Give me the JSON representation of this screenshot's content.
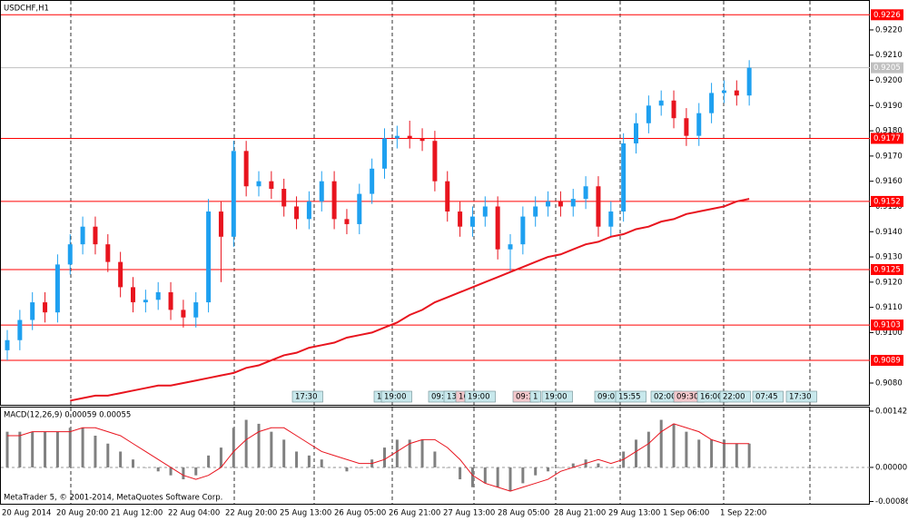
{
  "chart_data": [
    {
      "type": "candlestick",
      "title": "USDCHF,H1",
      "ylim": [
        0.9071,
        0.92315
      ],
      "yticks": [
        {
          "value": 0.922,
          "label": "0.9220"
        },
        {
          "value": 0.921,
          "label": "0.9210"
        },
        {
          "value": 0.92,
          "label": "0.9200"
        },
        {
          "value": 0.919,
          "label": "0.9190"
        },
        {
          "value": 0.918,
          "label": "0.9180"
        },
        {
          "value": 0.917,
          "label": "0.9170"
        },
        {
          "value": 0.916,
          "label": "0.9160"
        },
        {
          "value": 0.915,
          "label": "0.9150"
        },
        {
          "value": 0.914,
          "label": "0.9140"
        },
        {
          "value": 0.913,
          "label": "0.9130"
        },
        {
          "value": 0.912,
          "label": "0.9120"
        },
        {
          "value": 0.911,
          "label": "0.9110"
        },
        {
          "value": 0.91,
          "label": "0.9100"
        },
        {
          "value": 0.908,
          "label": "0.9080"
        }
      ],
      "levels": [
        0.9226,
        0.9177,
        0.9152,
        0.9125,
        0.9103,
        0.9089
      ],
      "level_color": "#ff0000",
      "current_price": 0.9205,
      "up_color": "#1ea0f0",
      "down_color": "#e8141e",
      "ma_color": "#e8141e",
      "open": [
        0.9093,
        0.9097,
        0.9105,
        0.9112,
        0.9108,
        0.9127,
        0.9135,
        0.9142,
        0.9135,
        0.9128,
        0.9118,
        0.9112,
        0.9113,
        0.9116,
        0.9109,
        0.9106,
        0.9112,
        0.9148,
        0.9138,
        0.9172,
        0.9158,
        0.916,
        0.9157,
        0.915,
        0.9145,
        0.9152,
        0.916,
        0.9145,
        0.9143,
        0.9155,
        0.9165,
        0.9177,
        0.9178,
        0.9177,
        0.9176,
        0.916,
        0.9148,
        0.9142,
        0.9146,
        0.915,
        0.9133,
        0.9135,
        0.9146,
        0.915,
        0.9152,
        0.915,
        0.9153,
        0.9158,
        0.9142,
        0.9148,
        0.9175,
        0.9183,
        0.919,
        0.9192,
        0.9185,
        0.9178,
        0.9187,
        0.9195,
        0.9196,
        0.9194
      ],
      "high": [
        0.9101,
        0.9109,
        0.9116,
        0.9116,
        0.9131,
        0.9139,
        0.9146,
        0.9146,
        0.9139,
        0.9132,
        0.9122,
        0.9117,
        0.912,
        0.912,
        0.9113,
        0.9116,
        0.9153,
        0.9152,
        0.9176,
        0.9176,
        0.9164,
        0.9164,
        0.9161,
        0.9154,
        0.9156,
        0.9164,
        0.9164,
        0.9149,
        0.9159,
        0.9169,
        0.9181,
        0.9182,
        0.9184,
        0.9181,
        0.918,
        0.9164,
        0.9152,
        0.915,
        0.9154,
        0.9154,
        0.9139,
        0.915,
        0.9154,
        0.9156,
        0.9156,
        0.9157,
        0.9162,
        0.9162,
        0.9152,
        0.9179,
        0.9187,
        0.9194,
        0.9196,
        0.9196,
        0.9189,
        0.9191,
        0.9199,
        0.92,
        0.92,
        0.9208
      ],
      "low": [
        0.9089,
        0.9093,
        0.9101,
        0.9104,
        0.9104,
        0.9123,
        0.9131,
        0.9131,
        0.9124,
        0.9114,
        0.9108,
        0.9108,
        0.9109,
        0.9105,
        0.9102,
        0.9102,
        0.9108,
        0.912,
        0.9134,
        0.9154,
        0.9154,
        0.9153,
        0.9146,
        0.9141,
        0.9141,
        0.9148,
        0.9141,
        0.9139,
        0.9139,
        0.9151,
        0.9161,
        0.9173,
        0.9173,
        0.9172,
        0.9156,
        0.9144,
        0.9138,
        0.9138,
        0.9142,
        0.9129,
        0.9124,
        0.9131,
        0.9142,
        0.9146,
        0.9146,
        0.9146,
        0.9149,
        0.9138,
        0.9138,
        0.9144,
        0.9171,
        0.9179,
        0.9186,
        0.9181,
        0.9174,
        0.9174,
        0.9183,
        0.9191,
        0.919,
        0.919
      ],
      "close": [
        0.9097,
        0.9105,
        0.9112,
        0.9108,
        0.9127,
        0.9135,
        0.9142,
        0.9135,
        0.9128,
        0.9118,
        0.9112,
        0.9113,
        0.9116,
        0.9109,
        0.9106,
        0.9112,
        0.9148,
        0.9138,
        0.9172,
        0.9158,
        0.916,
        0.9157,
        0.915,
        0.9145,
        0.9152,
        0.916,
        0.9145,
        0.9143,
        0.9155,
        0.9165,
        0.9177,
        0.9178,
        0.9177,
        0.9176,
        0.916,
        0.9148,
        0.9142,
        0.9146,
        0.915,
        0.9133,
        0.9135,
        0.9146,
        0.915,
        0.9152,
        0.915,
        0.9153,
        0.9158,
        0.9142,
        0.9148,
        0.9175,
        0.9183,
        0.919,
        0.9192,
        0.9185,
        0.9178,
        0.9187,
        0.9195,
        0.9196,
        0.9194,
        0.9205
      ],
      "ma": [
        null,
        null,
        null,
        null,
        null,
        0.9073,
        0.9074,
        0.9075,
        0.9075,
        0.9076,
        0.9077,
        0.9078,
        0.9079,
        0.9079,
        0.908,
        0.9081,
        0.9082,
        0.9083,
        0.9084,
        0.9086,
        0.9087,
        0.9089,
        0.9091,
        0.9092,
        0.9094,
        0.9095,
        0.9096,
        0.9098,
        0.9099,
        0.91,
        0.9102,
        0.9104,
        0.9107,
        0.9109,
        0.9112,
        0.9114,
        0.9116,
        0.9118,
        0.912,
        0.9122,
        0.9124,
        0.9126,
        0.9128,
        0.913,
        0.9131,
        0.9133,
        0.9135,
        0.9136,
        0.9138,
        0.9139,
        0.9141,
        0.9142,
        0.9144,
        0.9145,
        0.9147,
        0.9148,
        0.9149,
        0.915,
        0.9152,
        0.9153
      ],
      "events": [
        "17:30",
        "1",
        "19:00",
        "09:0",
        "13",
        "16",
        "19:00",
        "09:1",
        "1",
        "19:00",
        "09:0",
        "15:55",
        "02:00",
        "09:30",
        "16:00",
        "22:00",
        "07:45",
        "17:30"
      ]
    },
    {
      "type": "macd",
      "title": "MACD(12,26,9) 0.00059 0.00055",
      "ylim": [
        -0.00094,
        0.00151
      ],
      "yticks": [
        0.00142,
        {
          "value": 0,
          "label": "0.00000"
        },
        -0.00086
      ],
      "hist_color": "#808080",
      "signal_color": "#e8141e",
      "histogram": [
        0.0009,
        0.0009,
        0.0009,
        0.0009,
        0.0009,
        0.001,
        0.001,
        0.0008,
        0.0006,
        0.0004,
        0.0002,
        0,
        -0.0001,
        -0.0002,
        -0.0003,
        -0.0002,
        0.0003,
        0.0005,
        0.001,
        0.0012,
        0.0011,
        0.0009,
        0.0007,
        0.0004,
        0.0003,
        0.0002,
        0,
        -0.0001,
        0,
        0.0002,
        0.0005,
        0.0007,
        0.0007,
        0.0007,
        0.0004,
        0,
        -0.0003,
        -0.0005,
        -0.0004,
        -0.0005,
        -0.0006,
        -0.0004,
        -0.0002,
        -0.0001,
        0,
        0.0001,
        0.0002,
        0.0001,
        0,
        0.0004,
        0.0007,
        0.0009,
        0.0012,
        0.0011,
        0.0009,
        0.0007,
        0.0007,
        0.0007,
        0.0006,
        0.0006
      ],
      "signal": [
        0.0008,
        0.0008,
        0.0009,
        0.0009,
        0.0009,
        0.0009,
        0.001,
        0.001,
        0.0009,
        0.0008,
        0.0006,
        0.0004,
        0.0002,
        0,
        -0.0002,
        -0.0003,
        -0.0002,
        0,
        0.0004,
        0.0007,
        0.0009,
        0.001,
        0.001,
        0.0008,
        0.0006,
        0.0004,
        0.0003,
        0.0002,
        0.0001,
        0.0001,
        0.0002,
        0.0004,
        0.0006,
        0.0007,
        0.0007,
        0.0005,
        0.0002,
        -0.0002,
        -0.0004,
        -0.0005,
        -0.0006,
        -0.0005,
        -0.0004,
        -0.0003,
        -0.0001,
        0,
        0.0001,
        0.0002,
        0.0001,
        0.0002,
        0.0004,
        0.0006,
        0.0009,
        0.0011,
        0.001,
        0.0009,
        0.0007,
        0.0006,
        0.0006,
        0.0006
      ]
    }
  ],
  "time_axis": [
    "20 Aug 2014",
    "20 Aug 20:00",
    "21 Aug 12:00",
    "22 Aug 04:00",
    "22 Aug 20:00",
    "25 Aug 13:00",
    "26 Aug 05:00",
    "26 Aug 21:00",
    "27 Aug 13:00",
    "28 Aug 05:00",
    "28 Aug 21:00",
    "29 Aug 13:00",
    "1 Sep 06:00",
    "1 Sep 22:00"
  ],
  "footer": "MetaTrader 5, © 2001-2014, MetaQuotes Software Corp."
}
